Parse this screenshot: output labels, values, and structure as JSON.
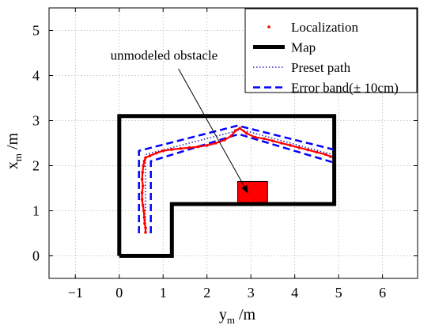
{
  "chart_data": {
    "type": "line",
    "xlabel": {
      "base": "y",
      "sub": "m",
      "unit": " /m"
    },
    "ylabel": {
      "base": "x",
      "sub": "m",
      "unit": " /m"
    },
    "xlim": [
      -1.6,
      6.8
    ],
    "ylim": [
      -0.5,
      5.5
    ],
    "xticks": [
      -1,
      0,
      1,
      2,
      3,
      4,
      5,
      6
    ],
    "yticks": [
      0,
      1,
      2,
      3,
      4,
      5
    ],
    "xtick_labels": [
      "−1",
      "0",
      "1",
      "2",
      "3",
      "4",
      "5",
      "6"
    ],
    "ytick_labels": [
      "0",
      "1",
      "2",
      "3",
      "4",
      "5"
    ],
    "grid": true,
    "legend_position": "top-right",
    "legend": [
      {
        "key": "localization",
        "label": "Localization"
      },
      {
        "key": "map",
        "label": "Map"
      },
      {
        "key": "preset",
        "label": "Preset path"
      },
      {
        "key": "band",
        "label": "Error band(± 10cm)"
      }
    ],
    "colors": {
      "localization": "#ff0000",
      "map": "#000000",
      "preset": "#1f1fbf",
      "band": "#0000ff",
      "obstacle": "#ff0000"
    },
    "series": {
      "map": [
        [
          0,
          0
        ],
        [
          1.2,
          0
        ],
        [
          1.2,
          1.15
        ],
        [
          4.9,
          1.15
        ],
        [
          4.9,
          3.1
        ],
        [
          0,
          3.1
        ],
        [
          0,
          0
        ]
      ],
      "preset_path": [
        [
          0.6,
          0.5
        ],
        [
          0.6,
          2.25
        ],
        [
          2.78,
          2.8
        ],
        [
          4.85,
          2.25
        ]
      ],
      "error_band_outer": [
        [
          0.45,
          0.5
        ],
        [
          0.45,
          2.33
        ],
        [
          2.7,
          2.89
        ],
        [
          4.88,
          2.36
        ]
      ],
      "error_band_inner": [
        [
          0.72,
          0.5
        ],
        [
          0.72,
          2.1
        ],
        [
          2.72,
          2.7
        ],
        [
          4.85,
          2.08
        ]
      ],
      "localization": [
        [
          0.6,
          0.52
        ],
        [
          0.6,
          0.62
        ],
        [
          0.58,
          0.72
        ],
        [
          0.57,
          0.85
        ],
        [
          0.56,
          1.0
        ],
        [
          0.54,
          1.12
        ],
        [
          0.52,
          1.25
        ],
        [
          0.52,
          1.4
        ],
        [
          0.54,
          1.55
        ],
        [
          0.52,
          1.7
        ],
        [
          0.53,
          1.85
        ],
        [
          0.55,
          2.0
        ],
        [
          0.57,
          2.1
        ],
        [
          0.6,
          2.18
        ],
        [
          0.7,
          2.22
        ],
        [
          0.85,
          2.28
        ],
        [
          1.0,
          2.33
        ],
        [
          1.2,
          2.36
        ],
        [
          1.4,
          2.38
        ],
        [
          1.6,
          2.4
        ],
        [
          1.8,
          2.42
        ],
        [
          2.0,
          2.45
        ],
        [
          2.2,
          2.5
        ],
        [
          2.4,
          2.57
        ],
        [
          2.55,
          2.66
        ],
        [
          2.65,
          2.78
        ],
        [
          2.75,
          2.83
        ],
        [
          2.9,
          2.72
        ],
        [
          3.1,
          2.63
        ],
        [
          3.3,
          2.6
        ],
        [
          3.5,
          2.55
        ],
        [
          3.7,
          2.5
        ],
        [
          3.9,
          2.45
        ],
        [
          4.1,
          2.4
        ],
        [
          4.3,
          2.35
        ],
        [
          4.5,
          2.3
        ],
        [
          4.7,
          2.25
        ],
        [
          4.82,
          2.2
        ]
      ],
      "obstacle": {
        "x0": 2.7,
        "x1": 3.38,
        "y0": 1.15,
        "y1": 1.65
      }
    },
    "annotation": {
      "text": "unmodeled obstacle",
      "from": [
        1.35,
        4.15
      ],
      "to": [
        2.93,
        1.4
      ]
    }
  }
}
